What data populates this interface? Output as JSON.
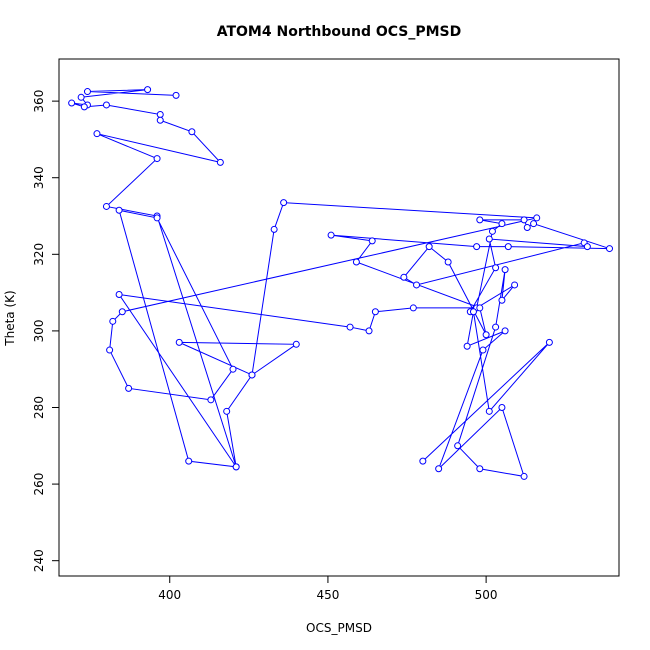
{
  "chart_data": {
    "type": "line",
    "markers": "circle",
    "title": "ATOM4 Northbound OCS_PMSD",
    "xlabel": "OCS_PMSD",
    "ylabel": "Theta (K)",
    "xlim": [
      365,
      542
    ],
    "ylim": [
      236,
      371
    ],
    "xticks": [
      400,
      450,
      500
    ],
    "yticks": [
      240,
      260,
      280,
      300,
      320,
      340,
      360
    ],
    "grid": false,
    "line_color": "#0000ff",
    "series": [
      {
        "name": "",
        "x": [
          402,
          374,
          393,
          372,
          374,
          369,
          373,
          380,
          397,
          397,
          407,
          416,
          377,
          396,
          380,
          396,
          421,
          406,
          384,
          396,
          420,
          413,
          387,
          381,
          382,
          385,
          516,
          436,
          433,
          426,
          403,
          440,
          426,
          418,
          421,
          384,
          457,
          463,
          465,
          477,
          497,
          502,
          505,
          498,
          512,
          513,
          515,
          539,
          507,
          497,
          451,
          464,
          459,
          498,
          500,
          488,
          482,
          474,
          478,
          531,
          532,
          501,
          503,
          495,
          509,
          505,
          506,
          503,
          491,
          498,
          512,
          505,
          485,
          499,
          506,
          494,
          496,
          501,
          520,
          480
        ],
        "y": [
          361.5,
          362.5,
          363,
          361,
          359,
          359.5,
          358.5,
          359,
          356.5,
          355,
          352,
          344,
          351.5,
          345,
          332.5,
          330,
          264.5,
          266,
          331.5,
          329.5,
          290,
          282,
          285,
          295,
          302.5,
          305,
          329.5,
          333.5,
          326.5,
          288.5,
          297,
          296.5,
          288.5,
          279,
          264.5,
          309.5,
          301,
          300,
          305,
          306,
          306,
          326,
          328,
          329,
          329,
          327,
          328,
          321.5,
          322,
          322,
          325,
          323.5,
          318,
          306,
          299,
          318,
          322,
          314,
          312,
          323,
          322,
          324,
          316.5,
          305,
          312,
          308,
          316,
          301,
          270,
          264,
          262,
          280,
          264,
          295,
          300,
          296,
          305,
          279,
          297,
          266
        ]
      }
    ]
  }
}
